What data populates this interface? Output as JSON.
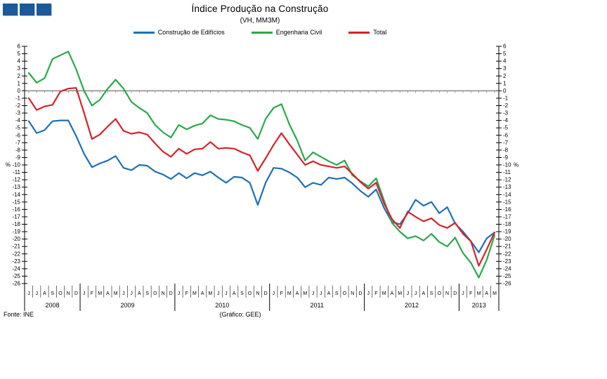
{
  "header": {
    "title": "Índice Produção na Construção",
    "subtitle": "(VH, MM3M)"
  },
  "legend": [
    {
      "label": "Construção de Edifícios",
      "color": "#1F6FB5"
    },
    {
      "label": "Engenharia Civil",
      "color": "#2BA84A"
    },
    {
      "label": "Total",
      "color": "#D62228"
    }
  ],
  "footer": {
    "source": "Fonte: INE",
    "credit": "(Gráfico: GEE)"
  },
  "logo": {
    "squares": 3,
    "color": "#1A5A9B"
  },
  "chart_data": {
    "type": "line",
    "title": "Índice Produção na Construção",
    "subtitle": "(VH, MM3M)",
    "ylabel": "%",
    "unit_left": "%",
    "unit_right": "%",
    "unit_at_value": -10,
    "ylim": [
      -26,
      6
    ],
    "y_tick_step": 1,
    "grid": "zero-line-only",
    "legend_position": "top-center",
    "years": [
      {
        "label": "2008",
        "months": [
          "J",
          "J",
          "A",
          "S",
          "O",
          "N",
          "D"
        ]
      },
      {
        "label": "2009",
        "months": [
          "J",
          "F",
          "M",
          "A",
          "M",
          "J",
          "J",
          "A",
          "S",
          "O",
          "N",
          "D"
        ]
      },
      {
        "label": "2010",
        "months": [
          "J",
          "F",
          "M",
          "A",
          "M",
          "J",
          "J",
          "A",
          "S",
          "O",
          "N",
          "D"
        ]
      },
      {
        "label": "2011",
        "months": [
          "J",
          "F",
          "M",
          "A",
          "M",
          "J",
          "J",
          "A",
          "S",
          "O",
          "N",
          "D"
        ]
      },
      {
        "label": "2012",
        "months": [
          "J",
          "F",
          "M",
          "A",
          "M",
          "J",
          "J",
          "A",
          "S",
          "O",
          "N",
          "D"
        ]
      },
      {
        "label": "2013",
        "months": [
          "J",
          "F",
          "M",
          "A",
          "M"
        ]
      }
    ],
    "series": [
      {
        "name": "Construção de Edifícios",
        "color": "#1F6FB5",
        "values": [
          -4.1,
          -5.7,
          -5.3,
          -4.1,
          -4.0,
          -4.0,
          -6.1,
          -8.5,
          -10.3,
          -9.8,
          -9.4,
          -8.8,
          -10.4,
          -10.7,
          -10.0,
          -10.1,
          -10.9,
          -11.3,
          -11.9,
          -11.1,
          -11.8,
          -11.1,
          -11.4,
          -10.9,
          -11.7,
          -12.4,
          -11.6,
          -11.7,
          -12.4,
          -15.4,
          -12.4,
          -10.4,
          -10.5,
          -11.0,
          -11.7,
          -13.0,
          -12.4,
          -12.7,
          -11.7,
          -11.9,
          -11.7,
          -12.5,
          -13.5,
          -14.3,
          -13.3,
          -15.8,
          -17.7,
          -18.0,
          -16.5,
          -14.7,
          -15.5,
          -15.0,
          -16.5,
          -15.7,
          -17.9,
          -19.0,
          -20.3,
          -21.8,
          -19.9,
          -19.1
        ]
      },
      {
        "name": "Engenharia Civil",
        "color": "#2BA84A",
        "values": [
          2.4,
          1.1,
          1.7,
          4.3,
          4.8,
          5.3,
          2.9,
          0.0,
          -2.0,
          -1.2,
          0.3,
          1.5,
          0.3,
          -1.5,
          -2.3,
          -3.0,
          -4.6,
          -5.6,
          -6.3,
          -4.6,
          -5.2,
          -4.7,
          -4.4,
          -3.3,
          -3.8,
          -3.9,
          -4.1,
          -4.6,
          -5.0,
          -6.5,
          -3.8,
          -2.3,
          -1.8,
          -4.5,
          -6.7,
          -9.4,
          -8.3,
          -8.9,
          -9.5,
          -10.0,
          -9.4,
          -11.4,
          -12.2,
          -12.9,
          -11.8,
          -14.8,
          -17.8,
          -19.0,
          -19.9,
          -19.6,
          -20.2,
          -19.3,
          -20.4,
          -21.0,
          -19.8,
          -21.9,
          -23.2,
          -25.2,
          -22.8,
          -19.5
        ]
      },
      {
        "name": "Total",
        "color": "#D62228",
        "values": [
          -1.0,
          -2.6,
          -2.1,
          -1.9,
          -0.1,
          0.3,
          0.4,
          -3.0,
          -6.5,
          -5.9,
          -4.8,
          -3.8,
          -5.4,
          -5.8,
          -5.6,
          -5.9,
          -7.1,
          -8.2,
          -8.9,
          -7.8,
          -8.5,
          -7.9,
          -7.8,
          -6.9,
          -7.8,
          -7.7,
          -7.8,
          -8.3,
          -8.7,
          -10.8,
          -9.1,
          -7.3,
          -5.7,
          -7.2,
          -8.6,
          -10.0,
          -9.5,
          -10.0,
          -10.2,
          -10.4,
          -10.2,
          -11.2,
          -12.3,
          -13.2,
          -12.4,
          -15.2,
          -17.3,
          -18.5,
          -16.3,
          -17.0,
          -17.6,
          -17.2,
          -18.1,
          -18.5,
          -17.8,
          -19.3,
          -20.3,
          -23.6,
          -21.4,
          -19.1
        ]
      }
    ]
  }
}
